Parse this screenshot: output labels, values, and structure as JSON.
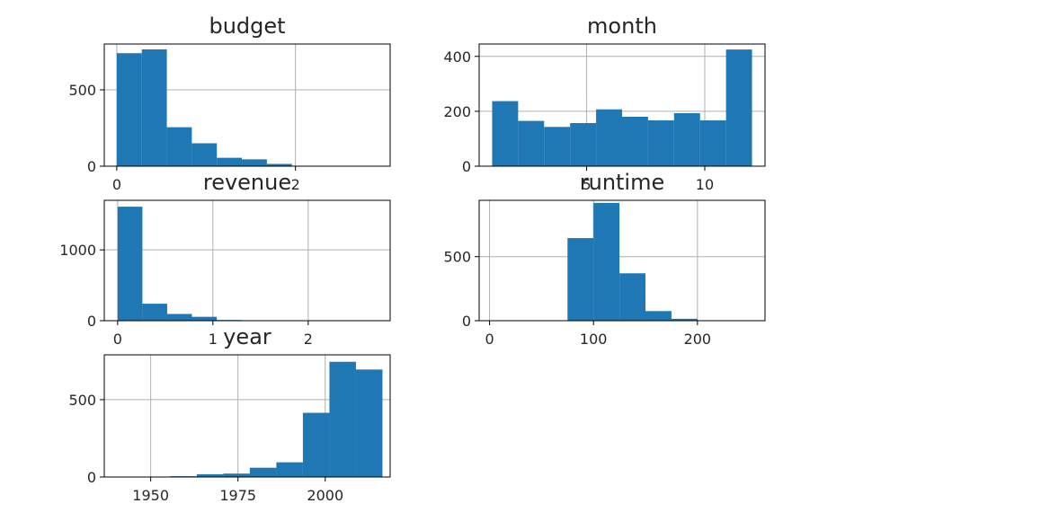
{
  "chart_data": [
    {
      "type": "bar",
      "title": "budget",
      "xlabel": "",
      "ylabel": "",
      "xlim": [
        -0.14,
        3.06
      ],
      "ylim": [
        0,
        800
      ],
      "grid": true,
      "bin_edges": [
        0,
        0.28,
        0.56,
        0.84,
        1.12,
        1.4,
        1.68,
        1.96,
        2.24,
        2.52,
        2.8
      ],
      "values": [
        740,
        765,
        255,
        150,
        55,
        45,
        15,
        3,
        0,
        0
      ],
      "xticks": [
        0,
        2
      ],
      "xtick_labels": [
        "0",
        "2"
      ],
      "yticks": [
        0,
        500
      ],
      "ytick_labels": [
        "0",
        "500"
      ],
      "color": "#1f77b4"
    },
    {
      "type": "bar",
      "title": "month",
      "xlabel": "",
      "ylabel": "",
      "xlim": [
        0.45,
        12.55
      ],
      "ylim": [
        0,
        445
      ],
      "grid": true,
      "bin_edges": [
        1,
        2.1,
        3.2,
        4.3,
        5.4,
        6.5,
        7.6,
        8.7,
        9.8,
        10.9,
        12
      ],
      "values": [
        237,
        165,
        143,
        157,
        207,
        180,
        167,
        193,
        167,
        425
      ],
      "xticks": [
        5,
        10
      ],
      "xtick_labels": [
        "5",
        "10"
      ],
      "yticks": [
        0,
        200,
        400
      ],
      "ytick_labels": [
        "0",
        "200",
        "400"
      ],
      "color": "#1f77b4"
    },
    {
      "type": "bar",
      "title": "revenue",
      "xlabel": "",
      "ylabel": "",
      "xlim": [
        -0.14,
        2.86
      ],
      "ylim": [
        0,
        1700
      ],
      "grid": true,
      "bin_edges": [
        0,
        0.26,
        0.52,
        0.78,
        1.04,
        1.3,
        1.56,
        1.82,
        2.08,
        2.34,
        2.6
      ],
      "values": [
        1610,
        240,
        95,
        55,
        10,
        5,
        0,
        0,
        0,
        0
      ],
      "xticks": [
        0,
        1,
        2
      ],
      "xtick_labels": [
        "0",
        "1",
        "2"
      ],
      "yticks": [
        0,
        1000
      ],
      "ytick_labels": [
        "0",
        "1000"
      ],
      "color": "#1f77b4"
    },
    {
      "type": "bar",
      "title": "runtime",
      "xlabel": "",
      "ylabel": "",
      "xlim": [
        -10,
        265
      ],
      "ylim": [
        0,
        940
      ],
      "grid": true,
      "bin_edges": [
        0,
        25,
        50,
        75,
        100,
        125,
        150,
        175,
        200,
        225,
        250
      ],
      "values": [
        0,
        0,
        0,
        645,
        920,
        370,
        75,
        15,
        3,
        1
      ],
      "xticks": [
        0,
        100,
        200
      ],
      "xtick_labels": [
        "0",
        "100",
        "200"
      ],
      "yticks": [
        0,
        500
      ],
      "ytick_labels": [
        "0",
        "500"
      ],
      "color": "#1f77b4"
    },
    {
      "type": "bar",
      "title": "year",
      "xlabel": "",
      "ylabel": "",
      "xlim": [
        1936.7,
        2018.6
      ],
      "ylim": [
        0,
        790
      ],
      "grid": true,
      "bin_edges": [
        1940.4,
        1948.0,
        1955.6,
        1963.2,
        1970.8,
        1978.4,
        1986.0,
        1993.6,
        2001.2,
        2008.8,
        2016.4
      ],
      "values": [
        2,
        1,
        5,
        18,
        22,
        60,
        95,
        415,
        745,
        695
      ],
      "xticks": [
        1950,
        1975,
        2000
      ],
      "xtick_labels": [
        "1950",
        "1975",
        "2000"
      ],
      "yticks": [
        0,
        500
      ],
      "ytick_labels": [
        "0",
        "500"
      ],
      "color": "#1f77b4"
    }
  ]
}
